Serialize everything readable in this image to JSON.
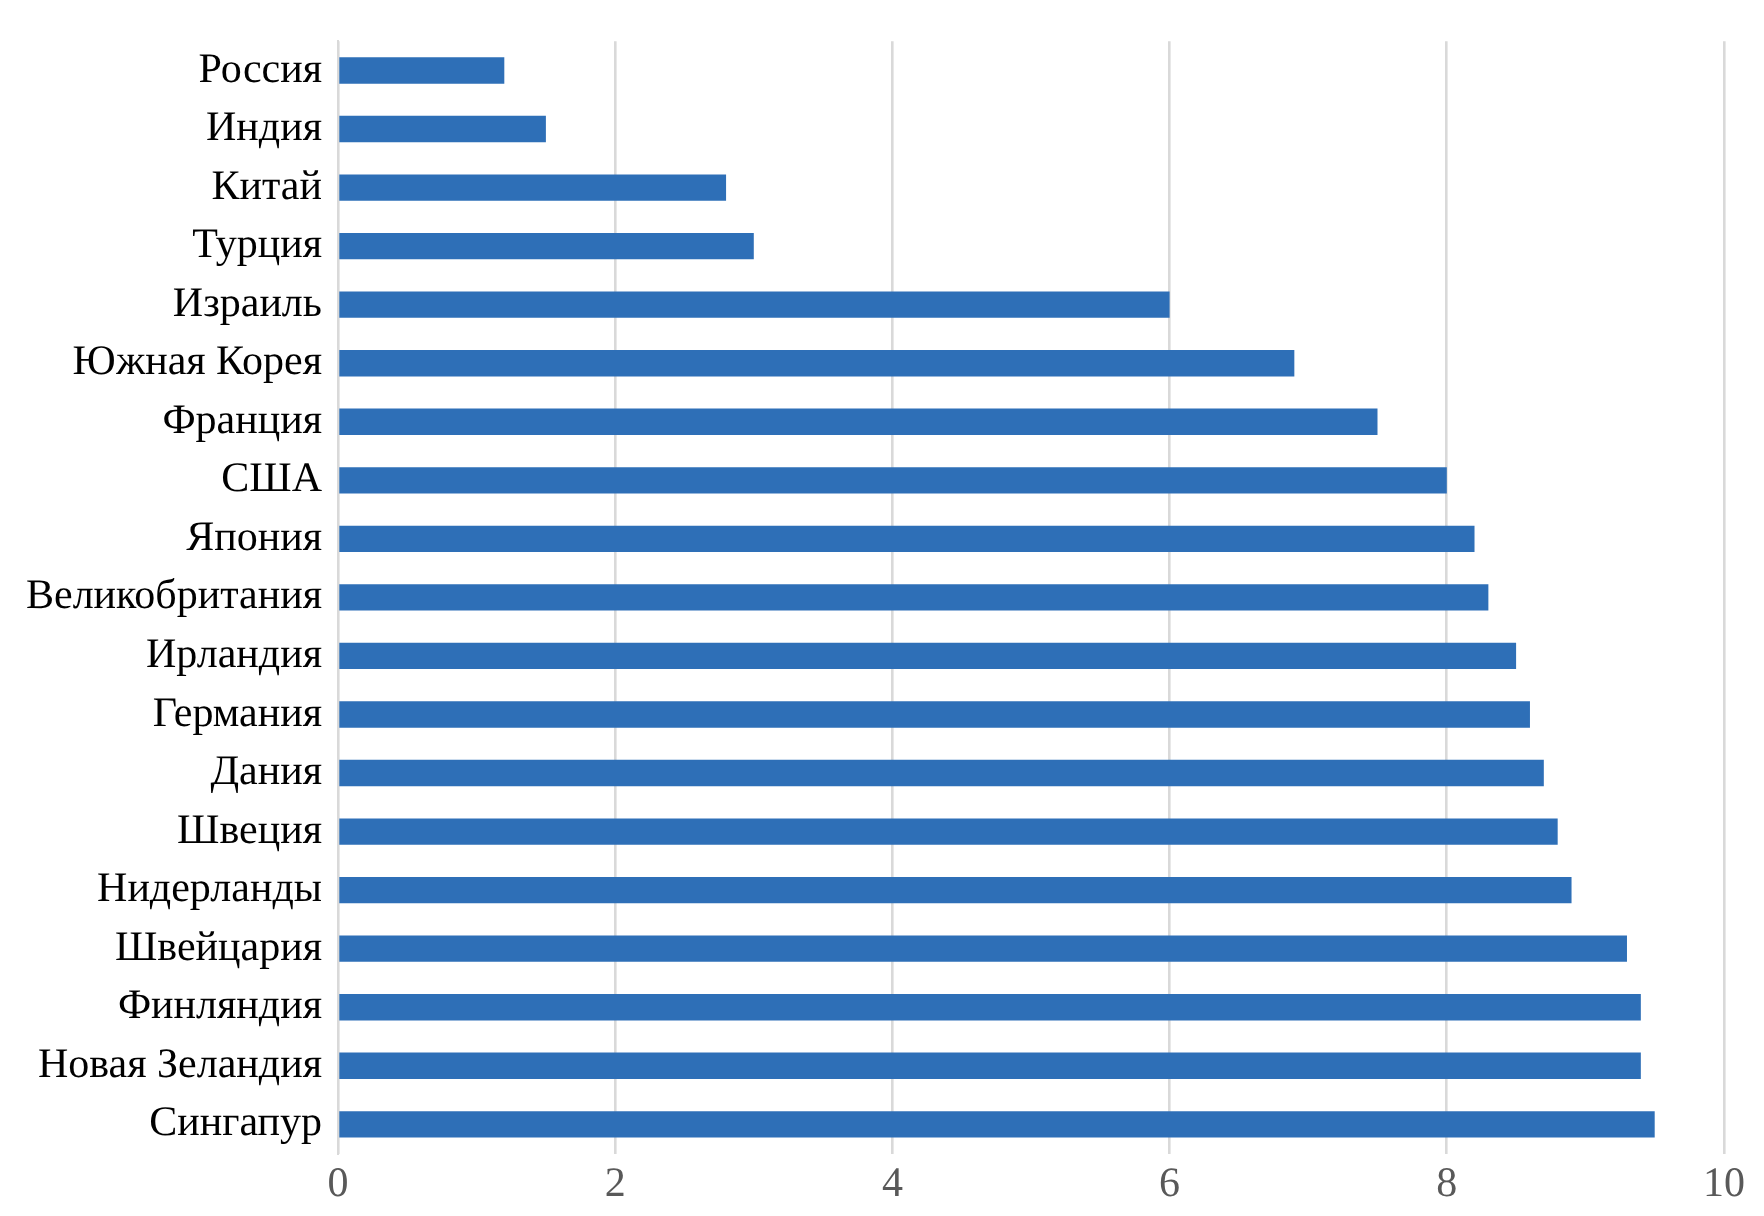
{
  "chart_data": {
    "type": "bar",
    "orientation": "horizontal",
    "categories": [
      "Россия",
      "Индия",
      "Китай",
      "Турция",
      "Израиль",
      "Южная Корея",
      "Франция",
      "США",
      "Япония",
      "Великобритания",
      "Ирландия",
      "Германия",
      "Дания",
      "Швеция",
      "Нидерланды",
      "Швейцария",
      "Финляндия",
      "Новая Зеландия",
      "Сингапур"
    ],
    "values": [
      1.2,
      1.5,
      2.8,
      3.0,
      6.0,
      6.9,
      7.5,
      8.0,
      8.2,
      8.3,
      8.5,
      8.6,
      8.7,
      8.8,
      8.9,
      9.3,
      9.4,
      9.4,
      9.5
    ],
    "color": "#2e6fb7",
    "xlim": [
      0,
      10
    ],
    "xticks": [
      0,
      2,
      4,
      6,
      8,
      10
    ],
    "grid": "x",
    "legend": false
  }
}
